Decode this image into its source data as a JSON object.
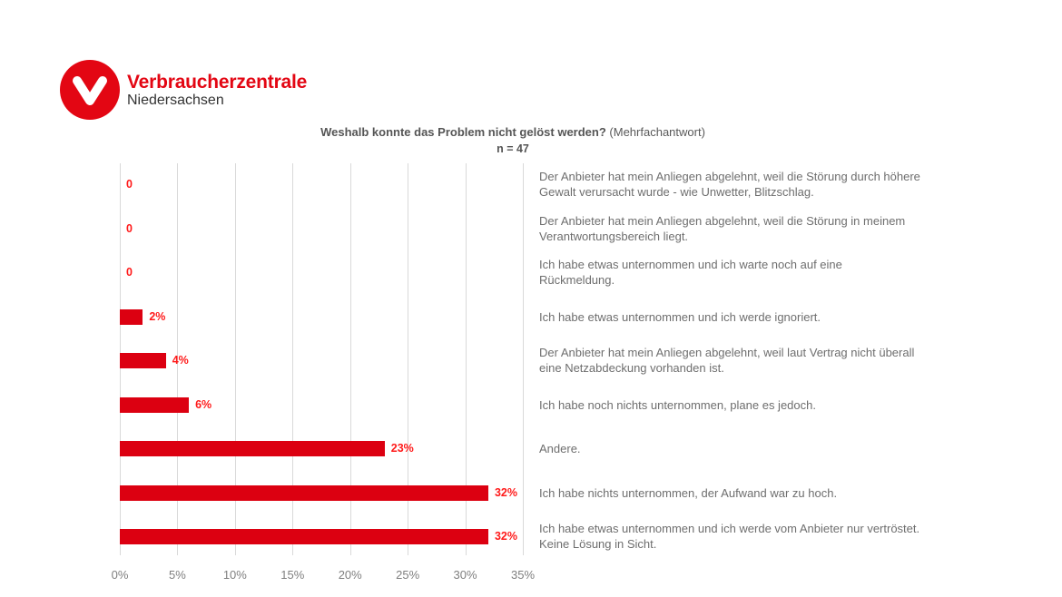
{
  "logo": {
    "brand": "Verbraucherzentrale",
    "region": "Niedersachsen",
    "icon": "v-logo-icon",
    "color": "#e30613"
  },
  "header": {
    "title_bold": "Weshalb konnte das Problem nicht gelöst werden?",
    "title_note": "(Mehrfachantwort)",
    "sample": "n = 47"
  },
  "chart_data": {
    "type": "bar",
    "orientation": "horizontal",
    "title": "Weshalb konnte das Problem nicht gelöst werden? (Mehrfachantwort)",
    "subtitle": "n = 47",
    "xlabel": "",
    "ylabel": "",
    "xlim": [
      0,
      35
    ],
    "grid": true,
    "bar_color": "#dc0011",
    "label_color": "#ff1a1a",
    "ticks": [
      "0%",
      "5%",
      "10%",
      "15%",
      "20%",
      "25%",
      "30%",
      "35%"
    ],
    "categories": [
      "Der Anbieter hat mein Anliegen abgelehnt, weil die Störung durch höhere Gewalt verursacht wurde - wie Unwetter, Blitzschlag.",
      "Der Anbieter hat mein Anliegen abgelehnt, weil die Störung in meinem Verantwortungsbereich liegt.",
      "Ich habe etwas unternommen und ich warte noch auf eine Rückmeldung.",
      "Ich habe etwas unternommen und ich werde ignoriert.",
      "Der Anbieter hat mein Anliegen abgelehnt, weil laut Vertrag nicht überall eine Netzabdeckung vorhanden ist.",
      "Ich habe noch nichts unternommen, plane es jedoch.",
      "Andere.",
      "Ich habe nichts unternommen, der Aufwand war zu hoch.",
      "Ich habe etwas unternommen und ich werde vom Anbieter nur vertröstet. Keine Lösung in Sicht."
    ],
    "values": [
      0,
      0,
      0,
      2,
      4,
      6,
      23,
      32,
      32
    ],
    "labels": [
      "0",
      "0",
      "0",
      "2%",
      "4%",
      "6%",
      "23%",
      "32%",
      "32%"
    ]
  }
}
